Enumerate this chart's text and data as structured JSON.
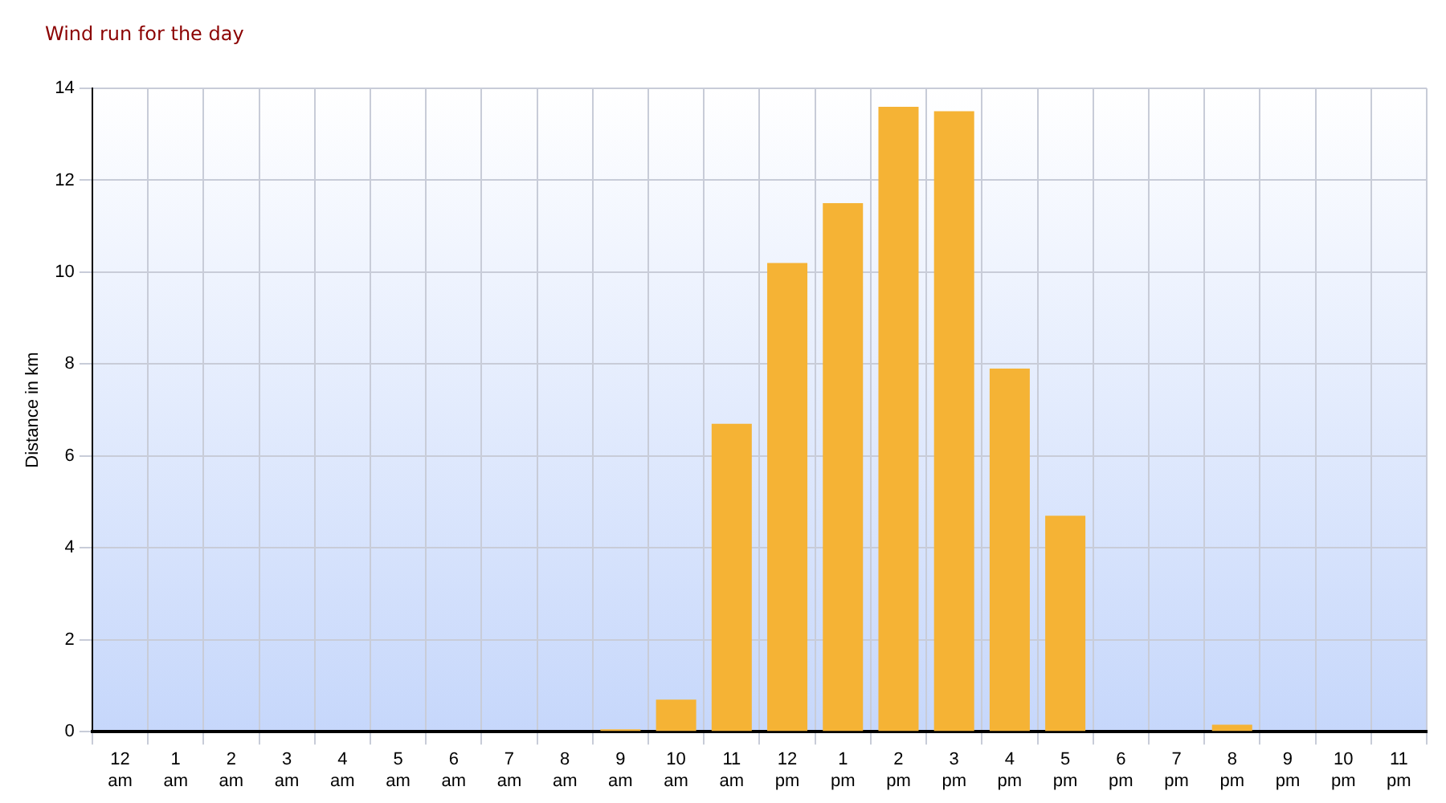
{
  "chart_data": {
    "type": "bar",
    "title": "Wind run for the day",
    "ylabel": "Distance in km",
    "categories": [
      "12 am",
      "1 am",
      "2 am",
      "3 am",
      "4 am",
      "5 am",
      "6 am",
      "7 am",
      "8 am",
      "9 am",
      "10 am",
      "11 am",
      "12 pm",
      "1 pm",
      "2 pm",
      "3 pm",
      "4 pm",
      "5 pm",
      "6 pm",
      "7 pm",
      "8 pm",
      "9 pm",
      "10 pm",
      "11 pm"
    ],
    "values": [
      0,
      0,
      0,
      0,
      0,
      0,
      0,
      0,
      0,
      0.05,
      0.7,
      6.7,
      10.2,
      11.5,
      13.6,
      13.5,
      7.9,
      4.7,
      0,
      0,
      0.15,
      0,
      0,
      0
    ],
    "color": "#f5b335",
    "ylim": [
      0,
      14
    ],
    "yticks": [
      0,
      2,
      4,
      6,
      8,
      10,
      12,
      14
    ],
    "grid": true,
    "legend": false
  }
}
